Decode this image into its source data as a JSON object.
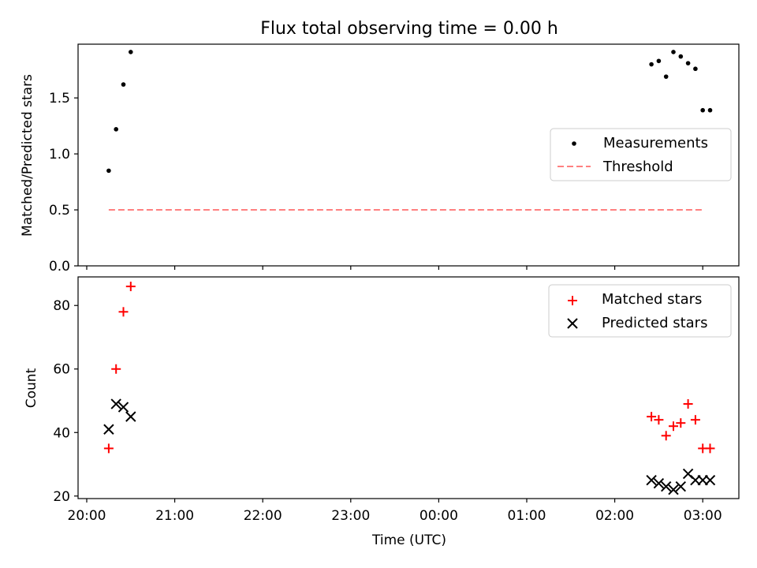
{
  "chart_data": [
    {
      "type": "scatter",
      "title": "Flux total observing time = 0.00 h",
      "xlabel": "",
      "ylabel": "Matched/Predicted stars",
      "ylim": [
        0.0,
        1.98
      ],
      "yticks": [
        0.0,
        0.5,
        1.0,
        1.5
      ],
      "ytick_labels": [
        "0.0",
        "0.5",
        "1.0",
        "1.5"
      ],
      "grid": false,
      "legend_position": "center-right",
      "series": [
        {
          "name": "Measurements",
          "marker": "dot",
          "color": "#000000",
          "x": [
            "20:15",
            "20:20",
            "20:25",
            "20:30",
            "02:25",
            "02:30",
            "02:35",
            "02:40",
            "02:45",
            "02:50",
            "02:55",
            "03:00",
            "03:05"
          ],
          "y": [
            0.85,
            1.22,
            1.62,
            1.91,
            1.8,
            1.83,
            1.69,
            1.91,
            1.87,
            1.81,
            1.76,
            1.39,
            1.39
          ]
        },
        {
          "name": "Threshold",
          "marker": "dashed-line",
          "color": "#ff8080",
          "x": [
            "20:15",
            "03:00"
          ],
          "y": [
            0.5,
            0.5
          ]
        }
      ]
    },
    {
      "type": "scatter",
      "title": "",
      "xlabel": "Time (UTC)",
      "ylabel": "Count",
      "ylim": [
        19.2,
        89.0
      ],
      "yticks": [
        20,
        40,
        60,
        80
      ],
      "ytick_labels": [
        "20",
        "40",
        "60",
        "80"
      ],
      "x_tick_labels": [
        "20:00",
        "21:00",
        "22:00",
        "23:00",
        "00:00",
        "01:00",
        "02:00",
        "03:00"
      ],
      "grid": false,
      "legend_position": "top-right",
      "series": [
        {
          "name": "Matched stars",
          "marker": "plus",
          "color": "#ff0000",
          "x": [
            "20:15",
            "20:20",
            "20:25",
            "20:30",
            "02:25",
            "02:30",
            "02:35",
            "02:40",
            "02:45",
            "02:50",
            "02:55",
            "03:00",
            "03:05"
          ],
          "y": [
            35,
            60,
            78,
            86,
            45,
            44,
            39,
            42,
            43,
            49,
            44,
            35,
            35
          ]
        },
        {
          "name": "Predicted stars",
          "marker": "x",
          "color": "#000000",
          "x": [
            "20:15",
            "20:20",
            "20:25",
            "20:30",
            "02:25",
            "02:30",
            "02:35",
            "02:40",
            "02:45",
            "02:50",
            "02:55",
            "03:00",
            "03:05"
          ],
          "y": [
            41,
            49,
            48,
            45,
            25,
            24,
            23,
            22,
            23,
            27,
            25,
            25,
            25
          ]
        }
      ]
    }
  ]
}
